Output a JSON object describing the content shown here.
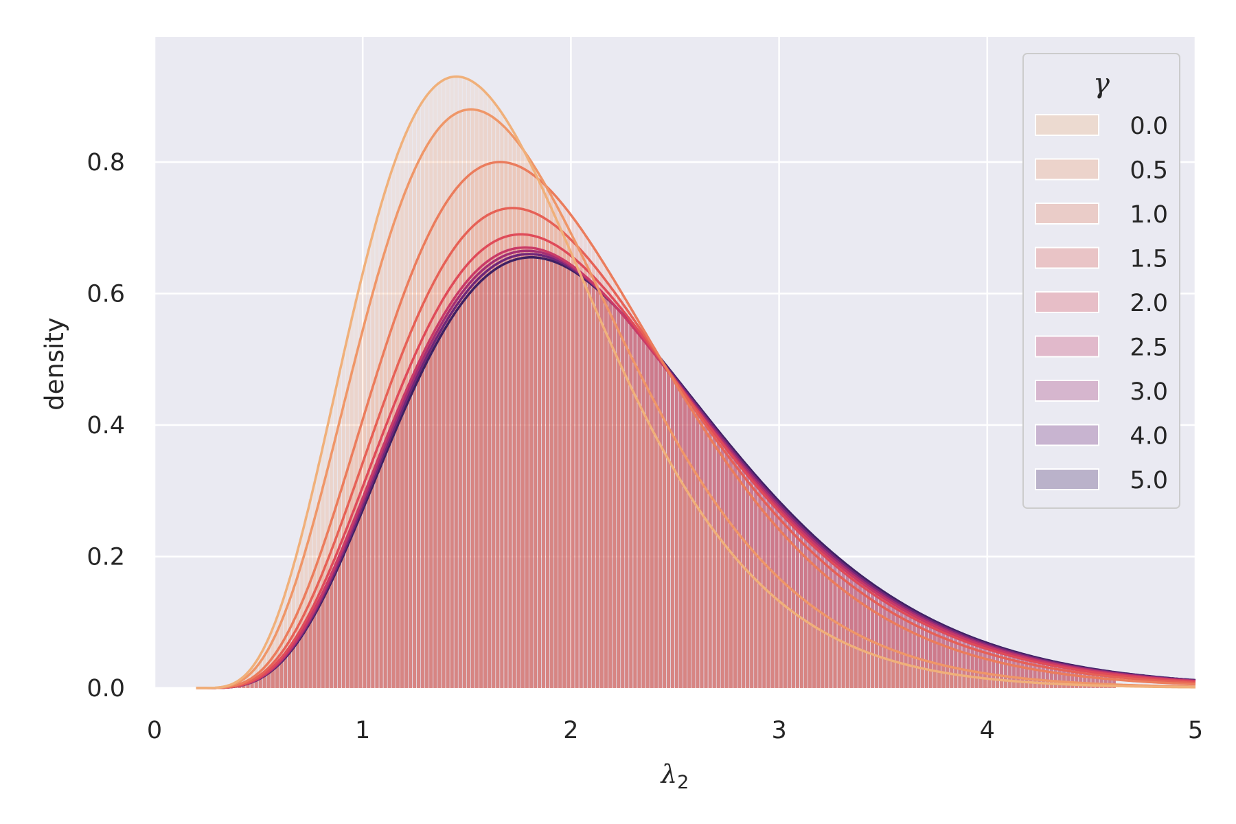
{
  "chart_data": {
    "type": "area",
    "xlabel": "λ",
    "xlabel_sub": "2",
    "ylabel": "density",
    "xlim": [
      0,
      5
    ],
    "ylim": [
      0,
      0.99
    ],
    "x_ticks": [
      0,
      1,
      2,
      3,
      4,
      5
    ],
    "x_tick_labels": [
      "0",
      "1",
      "2",
      "3",
      "4",
      "5"
    ],
    "y_ticks": [
      0.0,
      0.2,
      0.4,
      0.6,
      0.8
    ],
    "y_tick_labels": [
      "0.0",
      "0.2",
      "0.4",
      "0.6",
      "0.8"
    ],
    "grid": true,
    "legend_title": "γ",
    "legend_position": "top-right",
    "series": [
      {
        "name": "0.0",
        "color": "#f0b07a",
        "peak_x": 1.45,
        "peak_y": 0.93
      },
      {
        "name": "0.5",
        "color": "#ef9668",
        "peak_x": 1.52,
        "peak_y": 0.88
      },
      {
        "name": "1.0",
        "color": "#eb7c5c",
        "peak_x": 1.66,
        "peak_y": 0.8
      },
      {
        "name": "1.5",
        "color": "#e66156",
        "peak_x": 1.72,
        "peak_y": 0.73
      },
      {
        "name": "2.0",
        "color": "#df4b59",
        "peak_x": 1.76,
        "peak_y": 0.69
      },
      {
        "name": "2.5",
        "color": "#c93a67",
        "peak_x": 1.78,
        "peak_y": 0.67
      },
      {
        "name": "3.0",
        "color": "#a32f74",
        "peak_x": 1.79,
        "peak_y": 0.665
      },
      {
        "name": "4.0",
        "color": "#6f2779",
        "peak_x": 1.8,
        "peak_y": 0.66
      },
      {
        "name": "5.0",
        "color": "#3e2163",
        "peak_x": 1.81,
        "peak_y": 0.655
      }
    ]
  }
}
